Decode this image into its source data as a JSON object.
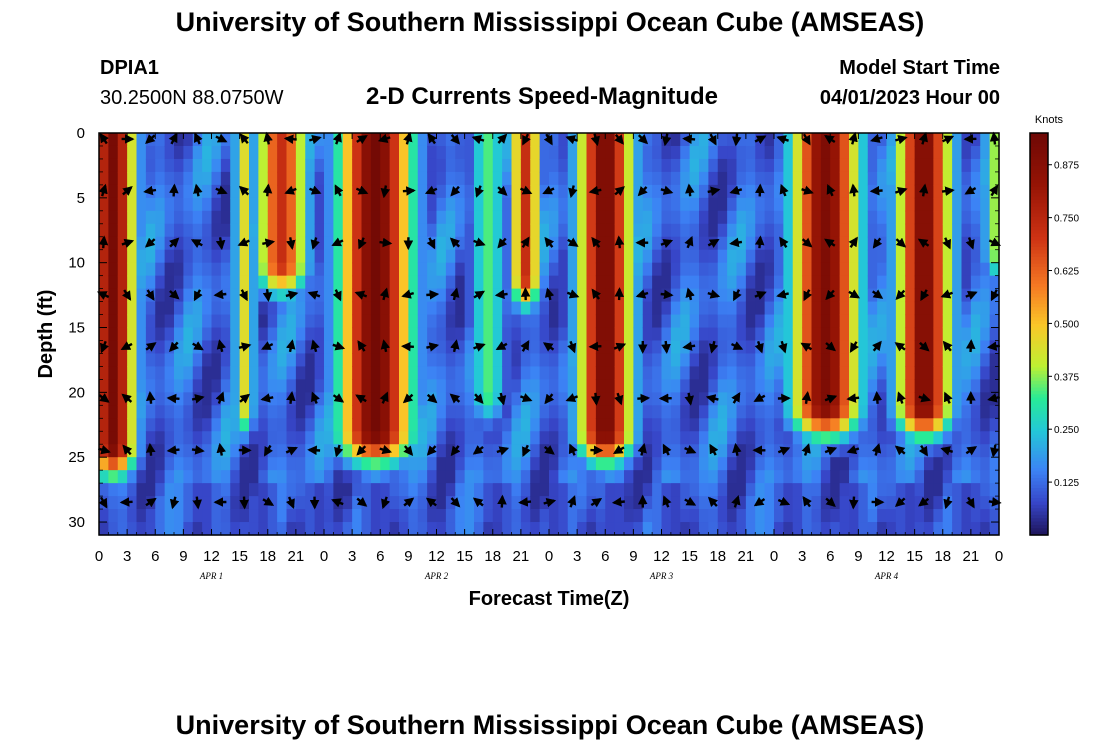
{
  "header": {
    "title": "University of Southern Mississippi Ocean Cube (AMSEAS)",
    "station_id": "DPIA1",
    "station_coords": "30.2500N  88.0750W",
    "chart_title": "2-D Currents Speed-Magnitude",
    "model_start_label": "Model Start Time",
    "model_start_value": "04/01/2023 Hour 00"
  },
  "footer": {
    "title": "University of Southern Mississippi Ocean Cube (AMSEAS)"
  },
  "chart_data": {
    "type": "heatmap",
    "title": "2-D Currents Speed-Magnitude",
    "xlabel": "Forecast Time(Z)",
    "ylabel": "Depth (ft)",
    "colorbar_label": "Knots",
    "x_range_hours": [
      0,
      96
    ],
    "y_range_ft": [
      0,
      31
    ],
    "y_inverted": true,
    "x_tick_labels": [
      "0",
      "3",
      "6",
      "9",
      "12",
      "15",
      "18",
      "21",
      "0",
      "3",
      "6",
      "9",
      "12",
      "15",
      "18",
      "21",
      "0",
      "3",
      "6",
      "9",
      "12",
      "15",
      "18",
      "21",
      "0",
      "3",
      "6",
      "9",
      "12",
      "15",
      "18",
      "21",
      "0"
    ],
    "y_ticks": [
      0,
      5,
      10,
      15,
      20,
      25,
      30
    ],
    "day_labels": [
      {
        "label": "APR 1",
        "hour": 12
      },
      {
        "label": "APR 2",
        "hour": 36
      },
      {
        "label": "APR 3",
        "hour": 60
      },
      {
        "label": "APR 4",
        "hour": 84
      }
    ],
    "colorbar_range": [
      0,
      0.95
    ],
    "colorbar_ticks": [
      "0.125",
      "0.250",
      "0.375",
      "0.500",
      "0.625",
      "0.750",
      "0.875"
    ],
    "colorbar_tick_values": [
      0.125,
      0.25,
      0.375,
      0.5,
      0.625,
      0.75,
      0.875
    ],
    "arrow_depths_ft": [
      0,
      4,
      8,
      12,
      16,
      20,
      24,
      28
    ],
    "arrow_hours_step": 2.5,
    "speed_features": [
      {
        "hour": 1.5,
        "width_h": 2.3,
        "depth_ft": 24,
        "peak_knots": 0.92
      },
      {
        "hour": 15.5,
        "width_h": 1.1,
        "depth_ft": 21,
        "peak_knots": 0.45
      },
      {
        "hour": 19.5,
        "width_h": 2.6,
        "depth_ft": 10,
        "peak_knots": 0.72
      },
      {
        "hour": 29.5,
        "width_h": 3.8,
        "depth_ft": 23,
        "peak_knots": 0.93
      },
      {
        "hour": 41.5,
        "width_h": 1.8,
        "depth_ft": 20,
        "peak_knots": 0.34
      },
      {
        "hour": 45.5,
        "width_h": 1.5,
        "depth_ft": 11,
        "peak_knots": 0.72
      },
      {
        "hour": 54.0,
        "width_h": 2.8,
        "depth_ft": 23,
        "peak_knots": 0.92
      },
      {
        "hour": 77.5,
        "width_h": 3.5,
        "depth_ft": 21,
        "peak_knots": 0.9
      },
      {
        "hour": 88.0,
        "width_h": 2.8,
        "depth_ft": 21,
        "peak_knots": 0.9
      },
      {
        "hour": 95.5,
        "width_h": 1.2,
        "depth_ft": 9,
        "peak_knots": 0.38
      }
    ]
  }
}
